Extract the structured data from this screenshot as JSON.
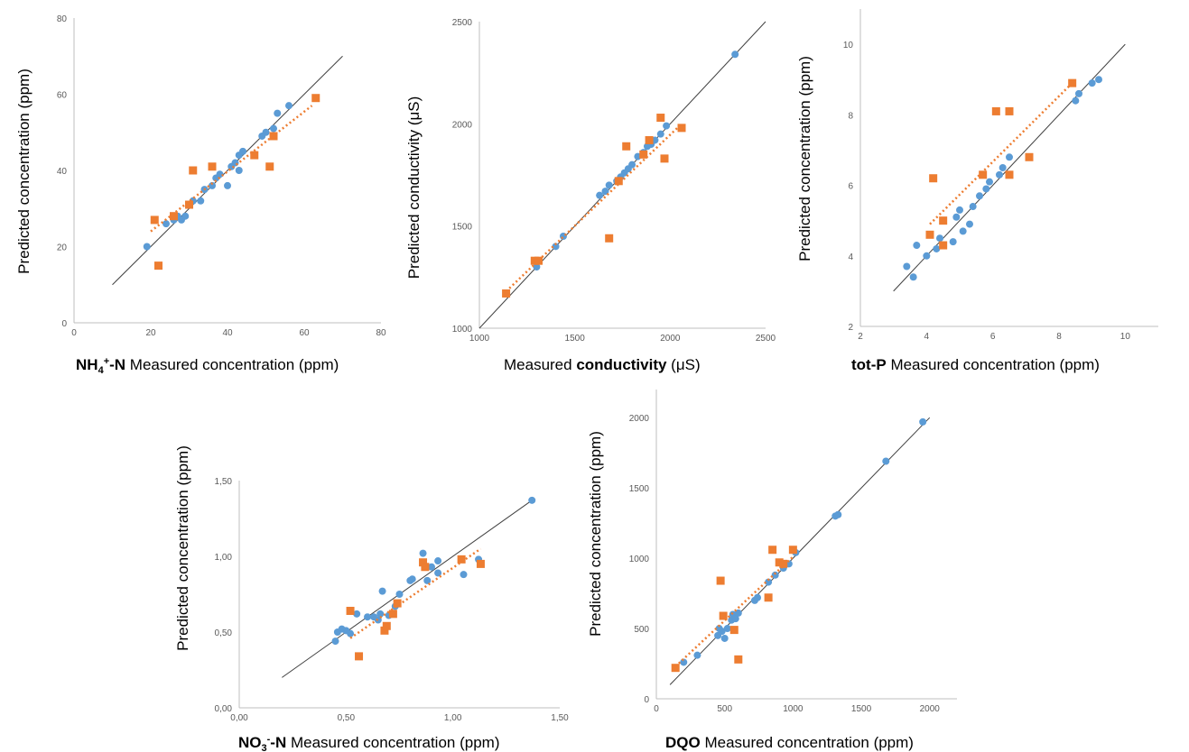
{
  "colors": {
    "measured": "#5b9bd5",
    "predicted": "#ed7d31",
    "identity": "#404040",
    "axis": "#bfbfbf"
  },
  "chart_data": [
    {
      "type": "scatter",
      "ylabel": "Predicted  concentration (ppm)",
      "xlabel_bold": "NH4+-N",
      "xlabel_rest": " Measured concentration (ppm)",
      "xlim": [
        0,
        80
      ],
      "ylim": [
        0,
        80
      ],
      "xticks": [
        "0",
        "20",
        "40",
        "60",
        "80"
      ],
      "yticks": [
        "0",
        "20",
        "40",
        "60",
        "80"
      ],
      "identity_line": [
        [
          10,
          10
        ],
        [
          70,
          70
        ]
      ],
      "series": [
        {
          "marker": "circle",
          "points": [
            [
              19,
              20
            ],
            [
              24,
              26
            ],
            [
              26,
              27
            ],
            [
              27,
              28
            ],
            [
              28,
              27
            ],
            [
              29,
              28
            ],
            [
              30,
              31
            ],
            [
              31,
              32
            ],
            [
              33,
              32
            ],
            [
              34,
              35
            ],
            [
              36,
              36
            ],
            [
              37,
              38
            ],
            [
              38,
              39
            ],
            [
              40,
              36
            ],
            [
              41,
              41
            ],
            [
              42,
              42
            ],
            [
              43,
              40
            ],
            [
              43,
              44
            ],
            [
              44,
              45
            ],
            [
              47,
              44
            ],
            [
              49,
              49
            ],
            [
              50,
              50
            ],
            [
              52,
              51
            ],
            [
              53,
              55
            ],
            [
              56,
              57
            ]
          ]
        },
        {
          "marker": "square",
          "points": [
            [
              21,
              27
            ],
            [
              22,
              15
            ],
            [
              26,
              28
            ],
            [
              30,
              31
            ],
            [
              31,
              40
            ],
            [
              36,
              41
            ],
            [
              47,
              44
            ],
            [
              51,
              41
            ],
            [
              52,
              49
            ],
            [
              63,
              59
            ]
          ]
        }
      ],
      "trend": [
        [
          20,
          24
        ],
        [
          62,
          57
        ]
      ]
    },
    {
      "type": "scatter",
      "ylabel": "Predicted  conductivity (μS)",
      "xlabel_pre": "Measured ",
      "xlabel_bold": "conductivity",
      "xlabel_post": " (μS)",
      "xlim": [
        1000,
        2500
      ],
      "ylim": [
        1000,
        2500
      ],
      "xticks": [
        "1000",
        "1500",
        "2000",
        "2500"
      ],
      "yticks": [
        "1000",
        "1500",
        "2000",
        "2500"
      ],
      "identity_line": [
        [
          1000,
          1000
        ],
        [
          2500,
          2500
        ]
      ],
      "series": [
        {
          "marker": "circle",
          "points": [
            [
              1300,
              1300
            ],
            [
              1400,
              1400
            ],
            [
              1440,
              1450
            ],
            [
              1630,
              1650
            ],
            [
              1660,
              1670
            ],
            [
              1680,
              1700
            ],
            [
              1720,
              1720
            ],
            [
              1740,
              1740
            ],
            [
              1760,
              1760
            ],
            [
              1780,
              1780
            ],
            [
              1800,
              1800
            ],
            [
              1830,
              1840
            ],
            [
              1860,
              1860
            ],
            [
              1880,
              1890
            ],
            [
              1900,
              1900
            ],
            [
              1920,
              1920
            ],
            [
              1950,
              1950
            ],
            [
              1980,
              1990
            ],
            [
              2340,
              2340
            ]
          ]
        },
        {
          "marker": "square",
          "points": [
            [
              1140,
              1170
            ],
            [
              1290,
              1330
            ],
            [
              1310,
              1330
            ],
            [
              1680,
              1440
            ],
            [
              1730,
              1720
            ],
            [
              1770,
              1890
            ],
            [
              1860,
              1850
            ],
            [
              1890,
              1920
            ],
            [
              1950,
              2030
            ],
            [
              1970,
              1830
            ],
            [
              2060,
              1980
            ]
          ]
        }
      ],
      "trend": [
        [
          1140,
          1180
        ],
        [
          2060,
          2000
        ]
      ]
    },
    {
      "type": "scatter",
      "ylabel": "Predicted  concentration (ppm)",
      "xlabel_bold": "tot-P",
      "xlabel_rest": " Measured concentration (ppm)",
      "xlim": [
        2,
        11
      ],
      "ylim": [
        2,
        11
      ],
      "xticks": [
        "2",
        "4",
        "6",
        "8",
        "10"
      ],
      "yticks": [
        "2",
        "4",
        "6",
        "8",
        "10"
      ],
      "identity_line": [
        [
          3,
          3
        ],
        [
          10,
          10
        ]
      ],
      "series": [
        {
          "marker": "circle",
          "points": [
            [
              3.4,
              3.7
            ],
            [
              3.6,
              3.4
            ],
            [
              3.7,
              4.3
            ],
            [
              4.0,
              4.0
            ],
            [
              4.3,
              4.2
            ],
            [
              4.4,
              4.5
            ],
            [
              4.5,
              4.3
            ],
            [
              4.8,
              4.4
            ],
            [
              4.9,
              5.1
            ],
            [
              5.0,
              5.3
            ],
            [
              5.1,
              4.7
            ],
            [
              5.3,
              4.9
            ],
            [
              5.4,
              5.4
            ],
            [
              5.6,
              5.7
            ],
            [
              5.8,
              5.9
            ],
            [
              5.9,
              6.1
            ],
            [
              6.2,
              6.3
            ],
            [
              6.3,
              6.5
            ],
            [
              6.5,
              6.8
            ],
            [
              8.5,
              8.4
            ],
            [
              8.6,
              8.6
            ],
            [
              9.0,
              8.9
            ],
            [
              9.2,
              9.0
            ]
          ]
        },
        {
          "marker": "square",
          "points": [
            [
              4.1,
              4.6
            ],
            [
              4.2,
              6.2
            ],
            [
              4.5,
              5.0
            ],
            [
              4.5,
              4.3
            ],
            [
              5.7,
              6.3
            ],
            [
              6.1,
              8.1
            ],
            [
              6.5,
              8.1
            ],
            [
              6.5,
              6.3
            ],
            [
              7.1,
              6.8
            ],
            [
              8.4,
              8.9
            ]
          ]
        }
      ],
      "trend": [
        [
          4.1,
          4.9
        ],
        [
          8.4,
          8.9
        ]
      ]
    },
    {
      "type": "scatter",
      "ylabel": "Predicted  concentration (ppm)",
      "xlabel_bold": "NO3--N",
      "xlabel_rest": " Measured concentration (ppm)",
      "xlim": [
        0,
        1.5
      ],
      "ylim": [
        0,
        1.5
      ],
      "xticks": [
        "0,00",
        "0,50",
        "1,00",
        "1,50"
      ],
      "yticks": [
        "0,00",
        "0,50",
        "1,00",
        "1,50"
      ],
      "identity_line": [
        [
          0.2,
          0.2
        ],
        [
          1.38,
          1.38
        ]
      ],
      "series": [
        {
          "marker": "circle",
          "points": [
            [
              0.45,
              0.44
            ],
            [
              0.46,
              0.5
            ],
            [
              0.48,
              0.52
            ],
            [
              0.5,
              0.51
            ],
            [
              0.52,
              0.49
            ],
            [
              0.55,
              0.62
            ],
            [
              0.6,
              0.6
            ],
            [
              0.63,
              0.6
            ],
            [
              0.65,
              0.58
            ],
            [
              0.66,
              0.62
            ],
            [
              0.67,
              0.77
            ],
            [
              0.7,
              0.61
            ],
            [
              0.73,
              0.67
            ],
            [
              0.75,
              0.75
            ],
            [
              0.8,
              0.84
            ],
            [
              0.81,
              0.85
            ],
            [
              0.86,
              1.02
            ],
            [
              0.88,
              0.84
            ],
            [
              0.9,
              0.93
            ],
            [
              0.93,
              0.97
            ],
            [
              0.93,
              0.89
            ],
            [
              1.05,
              0.88
            ],
            [
              1.12,
              0.98
            ],
            [
              1.37,
              1.37
            ]
          ]
        },
        {
          "marker": "square",
          "points": [
            [
              0.52,
              0.64
            ],
            [
              0.56,
              0.34
            ],
            [
              0.68,
              0.51
            ],
            [
              0.69,
              0.54
            ],
            [
              0.72,
              0.62
            ],
            [
              0.74,
              0.69
            ],
            [
              0.86,
              0.96
            ],
            [
              0.87,
              0.93
            ],
            [
              1.04,
              0.98
            ],
            [
              1.13,
              0.95
            ]
          ]
        }
      ],
      "trend": [
        [
          0.52,
          0.46
        ],
        [
          1.13,
          1.05
        ]
      ]
    },
    {
      "type": "scatter",
      "ylabel": "Predicted  concentration (ppm)",
      "xlabel_bold": "DQO",
      "xlabel_rest": " Measured concentration (ppm)",
      "xlim": [
        0,
        2200
      ],
      "ylim": [
        0,
        2200
      ],
      "xticks": [
        "0",
        "500",
        "1000",
        "1500",
        "2000"
      ],
      "yticks": [
        "0",
        "500",
        "1000",
        "1500",
        "2000"
      ],
      "identity_line": [
        [
          100,
          100
        ],
        [
          2000,
          2000
        ]
      ],
      "series": [
        {
          "marker": "circle",
          "points": [
            [
              200,
              260
            ],
            [
              300,
              310
            ],
            [
              450,
              450
            ],
            [
              460,
              500
            ],
            [
              480,
              480
            ],
            [
              500,
              430
            ],
            [
              520,
              500
            ],
            [
              550,
              560
            ],
            [
              560,
              600
            ],
            [
              580,
              570
            ],
            [
              600,
              610
            ],
            [
              720,
              700
            ],
            [
              740,
              720
            ],
            [
              820,
              830
            ],
            [
              870,
              880
            ],
            [
              930,
              930
            ],
            [
              970,
              960
            ],
            [
              1020,
              1040
            ],
            [
              1310,
              1300
            ],
            [
              1330,
              1310
            ],
            [
              1680,
              1690
            ],
            [
              1950,
              1970
            ]
          ]
        },
        {
          "marker": "square",
          "points": [
            [
              140,
              220
            ],
            [
              470,
              840
            ],
            [
              490,
              590
            ],
            [
              570,
              490
            ],
            [
              600,
              280
            ],
            [
              820,
              720
            ],
            [
              850,
              1060
            ],
            [
              900,
              970
            ],
            [
              930,
              960
            ],
            [
              1000,
              1060
            ]
          ]
        }
      ],
      "trend": [
        [
          140,
          230
        ],
        [
          1000,
          1010
        ]
      ]
    }
  ]
}
